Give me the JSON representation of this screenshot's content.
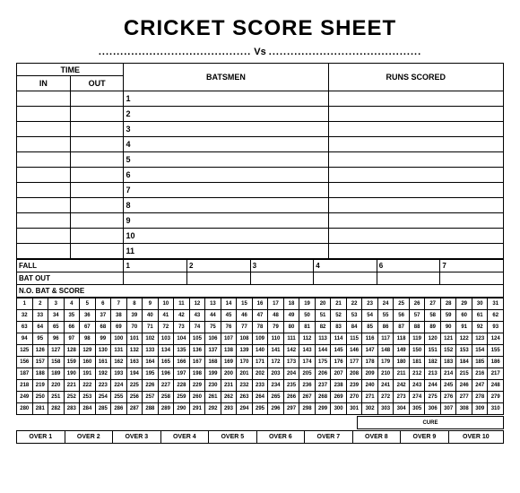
{
  "title": "CRICKET SCORE SHEET",
  "vs_label": "Vs",
  "headers": {
    "time": "TIME",
    "in": "IN",
    "out": "OUT",
    "batsmen": "BATSMEN",
    "runs_scored": "RUNS SCORED"
  },
  "batsmen_numbers": [
    "1",
    "2",
    "3",
    "4",
    "5",
    "6",
    "7",
    "8",
    "9",
    "10",
    "11"
  ],
  "fall": {
    "fall_label": "FALL",
    "bat_out_label": "BAT OUT",
    "no_bat_score_label": "N.O. BAT & SCORE",
    "columns": [
      "1",
      "2",
      "3",
      "4",
      "6",
      "7"
    ]
  },
  "score_grid": {
    "start": 1,
    "end": 310,
    "cols": 31
  },
  "cure_label": "CURE",
  "overs": [
    "OVER 1",
    "OVER 2",
    "OVER 3",
    "OVER 4",
    "OVER 5",
    "OVER 6",
    "OVER 7",
    "OVER 8",
    "OVER 9",
    "OVER 10"
  ],
  "colors": {
    "background": "#ffffff",
    "text": "#000000",
    "border": "#000000"
  }
}
